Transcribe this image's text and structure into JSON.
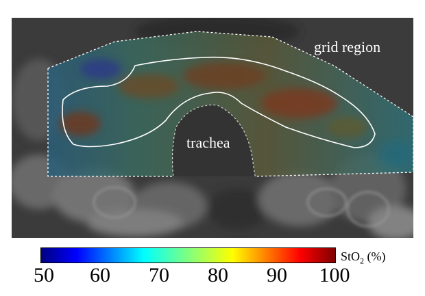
{
  "labels": {
    "grid_region": "grid region",
    "trachea": "trachea"
  },
  "colorbar": {
    "title_main": "StO",
    "title_sub": "2",
    "title_unit": " (%)",
    "ticks": [
      "50",
      "60",
      "70",
      "80",
      "90",
      "100"
    ],
    "range": [
      50,
      100
    ],
    "colormap": "jet"
  },
  "colors": {
    "background_scan": "#3a3a3a",
    "overlay_low": "#1f5aa0",
    "overlay_high": "#8a3a1a",
    "contour": "#ffffff"
  }
}
